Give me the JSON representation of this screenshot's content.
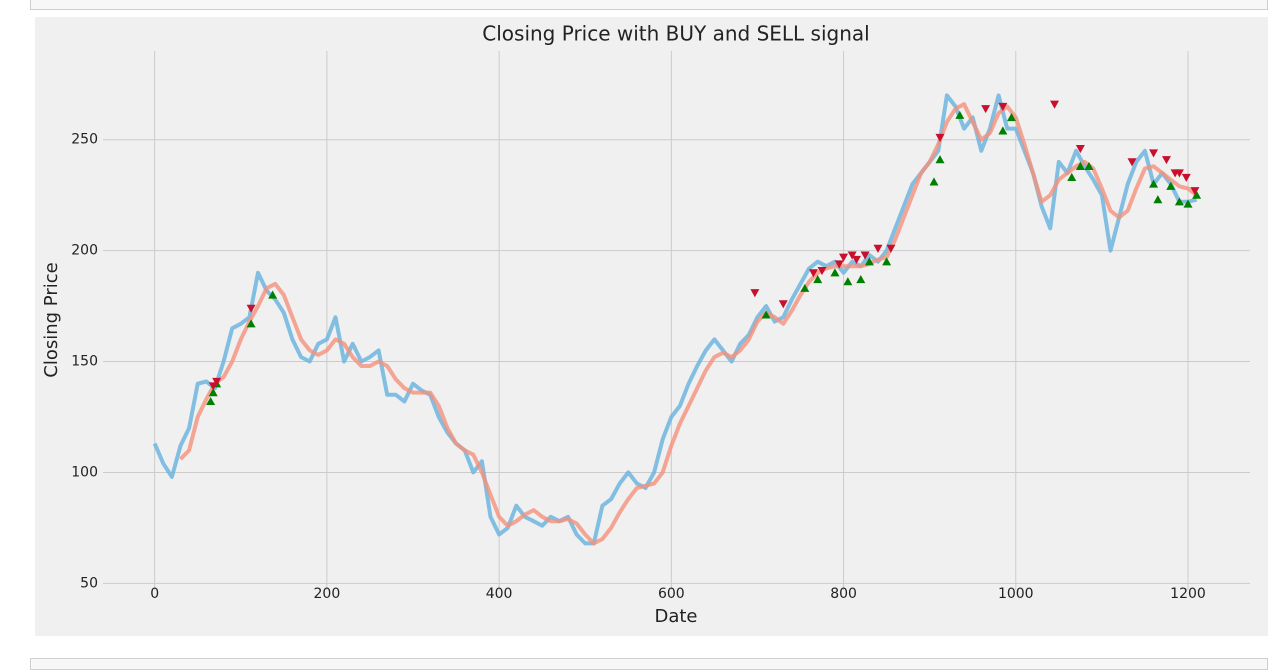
{
  "chart_data": {
    "type": "line",
    "title": "Closing Price with BUY and SELL signal",
    "x_label": "Date",
    "y_label": "Closing Price",
    "xlim": [
      -60,
      1272
    ],
    "ylim": [
      47,
      290
    ],
    "xticks": [
      0,
      200,
      400,
      600,
      800,
      1000,
      1200
    ],
    "yticks": [
      50,
      100,
      150,
      200,
      250
    ],
    "grid": true,
    "x": [
      0,
      10,
      20,
      30,
      40,
      50,
      60,
      70,
      80,
      90,
      100,
      110,
      120,
      130,
      140,
      150,
      160,
      170,
      180,
      190,
      200,
      210,
      220,
      230,
      240,
      250,
      260,
      270,
      280,
      290,
      300,
      310,
      320,
      330,
      340,
      350,
      360,
      370,
      380,
      390,
      400,
      410,
      420,
      430,
      440,
      450,
      460,
      470,
      480,
      490,
      500,
      510,
      520,
      530,
      540,
      550,
      560,
      570,
      580,
      590,
      600,
      610,
      620,
      630,
      640,
      650,
      660,
      670,
      680,
      690,
      700,
      710,
      720,
      730,
      740,
      750,
      760,
      770,
      780,
      790,
      800,
      810,
      820,
      830,
      840,
      850,
      860,
      870,
      880,
      890,
      900,
      910,
      920,
      930,
      940,
      950,
      960,
      970,
      980,
      990,
      1000,
      1010,
      1020,
      1030,
      1040,
      1050,
      1060,
      1070,
      1080,
      1090,
      1100,
      1110,
      1120,
      1130,
      1140,
      1150,
      1160,
      1170,
      1180,
      1190,
      1200,
      1210
    ],
    "series": [
      {
        "color": "#6fb5de",
        "width": 4,
        "opacity": 0.85,
        "values": [
          113,
          104,
          98,
          112,
          120,
          140,
          141,
          138,
          150,
          165,
          167,
          170,
          190,
          182,
          178,
          172,
          160,
          152,
          150,
          158,
          160,
          170,
          150,
          158,
          150,
          152,
          155,
          135,
          135,
          132,
          140,
          137,
          135,
          125,
          118,
          113,
          110,
          100,
          105,
          80,
          72,
          75,
          85,
          80,
          78,
          76,
          80,
          78,
          80,
          72,
          68,
          68,
          85,
          88,
          95,
          100,
          95,
          93,
          100,
          115,
          125,
          130,
          140,
          148,
          155,
          160,
          155,
          150,
          158,
          162,
          170,
          175,
          168,
          170,
          178,
          185,
          192,
          195,
          193,
          195,
          190,
          195,
          193,
          198,
          195,
          200,
          210,
          220,
          230,
          235,
          240,
          245,
          270,
          265,
          255,
          260,
          245,
          255,
          270,
          255,
          255,
          245,
          235,
          220,
          210,
          240,
          235,
          245,
          238,
          232,
          225,
          200,
          215,
          230,
          240,
          245,
          230,
          235,
          230,
          222,
          222,
          223
        ]
      },
      {
        "color": "#f4917c",
        "width": 4,
        "opacity": 0.8,
        "values": [
          null,
          null,
          null,
          106,
          110,
          125,
          133,
          140,
          143,
          150,
          160,
          168,
          175,
          183,
          185,
          180,
          170,
          160,
          155,
          153,
          155,
          160,
          158,
          152,
          148,
          148,
          150,
          148,
          142,
          138,
          136,
          136,
          136,
          130,
          120,
          113,
          110,
          108,
          100,
          90,
          80,
          76,
          78,
          81,
          83,
          80,
          78,
          78,
          79,
          77,
          72,
          68,
          70,
          75,
          82,
          88,
          93,
          94,
          95,
          100,
          112,
          122,
          130,
          138,
          146,
          152,
          154,
          152,
          155,
          160,
          168,
          172,
          170,
          167,
          173,
          180,
          186,
          190,
          192,
          193,
          193,
          193,
          193,
          194,
          196,
          197,
          205,
          215,
          225,
          235,
          240,
          248,
          258,
          264,
          266,
          258,
          250,
          253,
          262,
          265,
          260,
          248,
          235,
          222,
          225,
          232,
          235,
          238,
          240,
          237,
          228,
          218,
          215,
          218,
          228,
          237,
          238,
          235,
          232,
          229,
          228,
          225
        ]
      }
    ],
    "signals": [
      {
        "marker": "^",
        "color": "#008000",
        "x": [
          65,
          68,
          72,
          112,
          137,
          710,
          755,
          770,
          790,
          805,
          820,
          830,
          850,
          905,
          912,
          935,
          985,
          995,
          1065,
          1075,
          1085,
          1160,
          1165,
          1180,
          1190,
          1200,
          1210
        ],
        "values": [
          132,
          136,
          140,
          167,
          180,
          171,
          183,
          187,
          190,
          186,
          187,
          195,
          195,
          231,
          241,
          261,
          254,
          260,
          233,
          238,
          238,
          230,
          223,
          229,
          222,
          221,
          225
        ]
      },
      {
        "marker": "v",
        "color": "#c8102e",
        "x": [
          68,
          72,
          112,
          697,
          730,
          765,
          775,
          795,
          800,
          810,
          815,
          825,
          840,
          855,
          912,
          965,
          985,
          1045,
          1075,
          1135,
          1160,
          1175,
          1185,
          1190,
          1198,
          1208
        ],
        "values": [
          139,
          141,
          174,
          181,
          176,
          190,
          191,
          194,
          197,
          198,
          196,
          198,
          201,
          201,
          251,
          264,
          265,
          266,
          246,
          240,
          244,
          241,
          235,
          235,
          233,
          227
        ]
      }
    ]
  }
}
